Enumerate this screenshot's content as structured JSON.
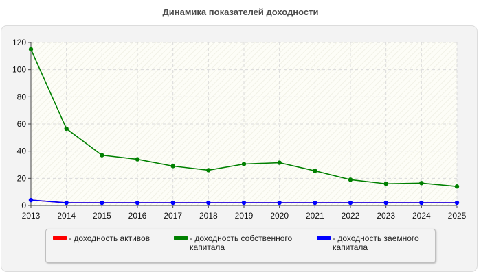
{
  "chart_data": {
    "type": "line",
    "title": "Динамика показателей доходности",
    "x": [
      "2013",
      "2014",
      "2015",
      "2016",
      "2017",
      "2018",
      "2019",
      "2020",
      "2021",
      "2022",
      "2023",
      "2024",
      "2025"
    ],
    "ylim": [
      0,
      120
    ],
    "yticks": [
      0,
      20,
      40,
      60,
      80,
      100,
      120
    ],
    "grid": true,
    "legend_position": "bottom",
    "series": [
      {
        "name": "- доходность активов",
        "color": "#ff0000",
        "values": [
          4,
          2,
          2,
          2,
          2,
          2,
          2,
          2,
          2,
          2,
          2,
          2,
          2
        ],
        "markers": false
      },
      {
        "name": "- доходность собственного капитала",
        "color": "#008000",
        "values": [
          115,
          56.5,
          37,
          34,
          29,
          26,
          30.5,
          31.5,
          25.5,
          19,
          16,
          16.5,
          14
        ],
        "markers": true
      },
      {
        "name": "- доходность заемного капитала",
        "color": "#0000ff",
        "values": [
          4,
          2,
          2,
          2,
          2,
          2,
          2,
          2,
          2,
          2,
          2,
          2,
          2
        ],
        "markers": true
      }
    ]
  }
}
